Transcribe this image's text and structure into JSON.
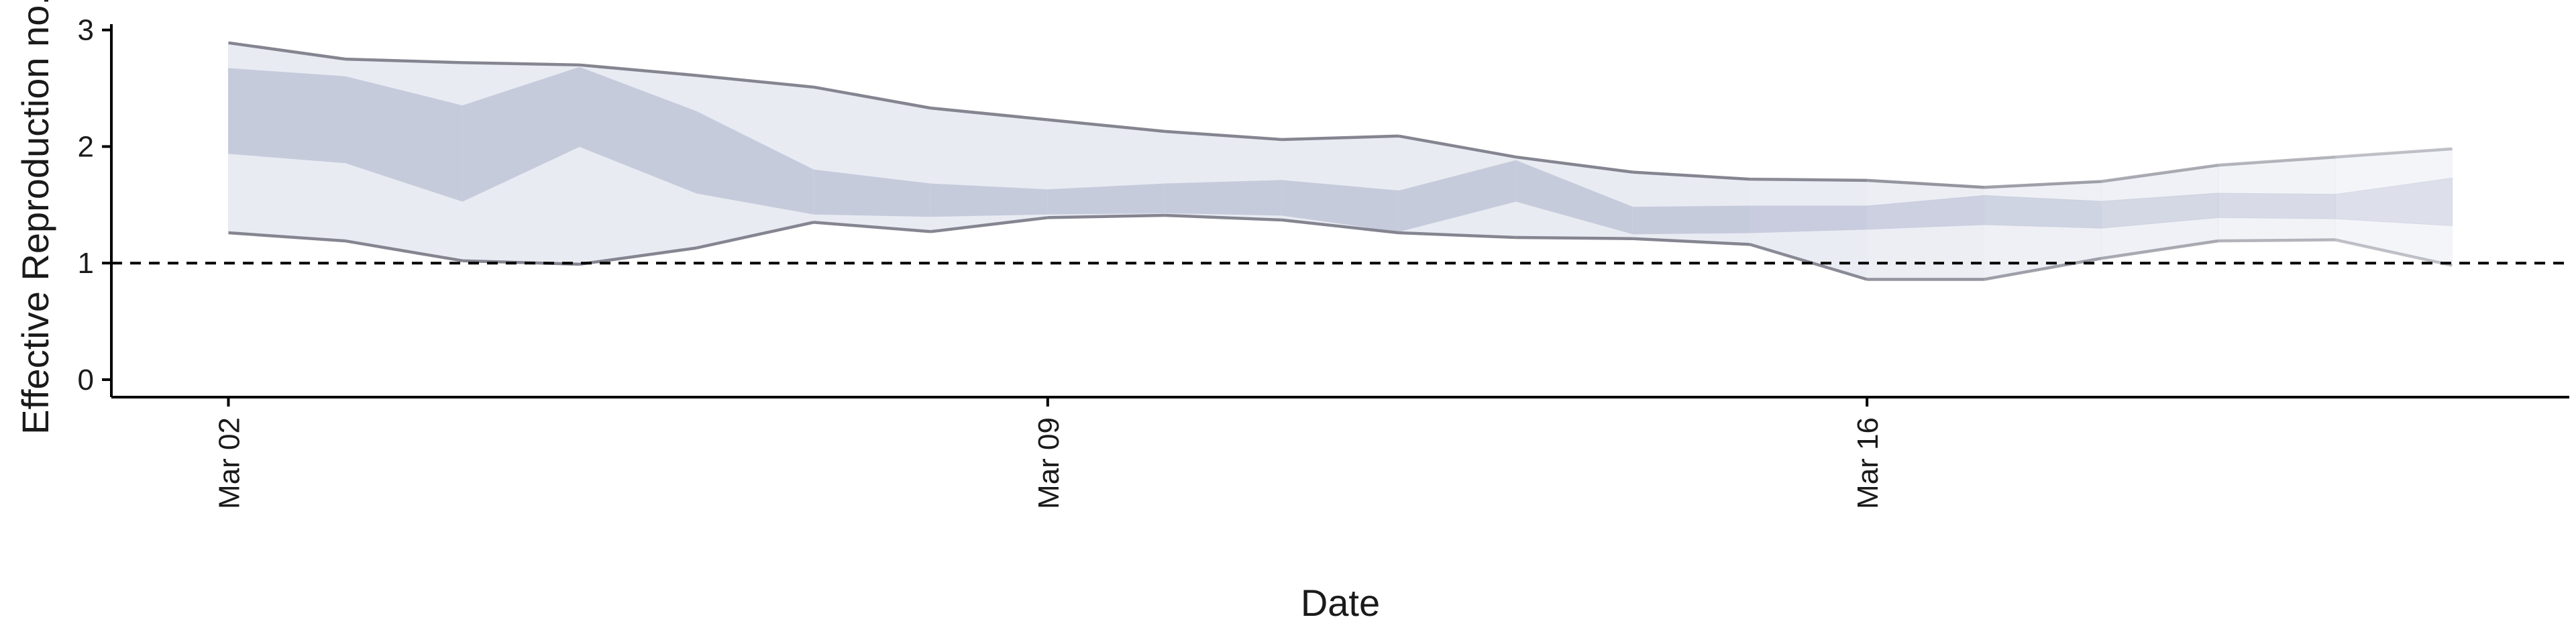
{
  "chart_data": {
    "type": "area",
    "title": "",
    "xlabel": "Date",
    "ylabel": "Effective Reproduction no.",
    "ylim": [
      -0.15,
      3.05
    ],
    "yticks": [
      0,
      1,
      2,
      3
    ],
    "xtick_labels": [
      {
        "date": "2020-03-02",
        "label": "Mar 02"
      },
      {
        "date": "2020-03-09",
        "label": "Mar 09"
      },
      {
        "date": "2020-03-16",
        "label": "Mar 16"
      }
    ],
    "xlim": [
      "2020-03-01",
      "2020-03-22"
    ],
    "reference_line": {
      "y": 1,
      "style": "dashed"
    },
    "grid": false,
    "colors": {
      "outer_band": "#e9ebf2",
      "inner_band": "#c6cbdc",
      "bound_line": "#858591",
      "reference": "#000000"
    },
    "series": [
      {
        "dates": [
          "2020-03-02",
          "2020-03-03",
          "2020-03-04",
          "2020-03-05",
          "2020-03-06",
          "2020-03-07",
          "2020-03-08",
          "2020-03-09",
          "2020-03-10",
          "2020-03-11",
          "2020-03-12",
          "2020-03-13",
          "2020-03-14",
          "2020-03-15",
          "2020-03-16",
          "2020-03-17",
          "2020-03-18",
          "2020-03-19",
          "2020-03-20",
          "2020-03-21"
        ],
        "lower_90": [
          1.26,
          1.19,
          1.02,
          0.99,
          1.13,
          1.35,
          1.27,
          1.39,
          1.41,
          1.37,
          1.26,
          1.22,
          1.21,
          1.16,
          0.86,
          0.86,
          1.04,
          1.19,
          1.2,
          0.98
        ],
        "lower_50": [
          1.94,
          1.86,
          1.53,
          2.0,
          1.6,
          1.42,
          1.4,
          1.42,
          1.43,
          1.41,
          1.27,
          1.53,
          1.25,
          1.26,
          1.29,
          1.33,
          1.3,
          1.39,
          1.38,
          1.32
        ],
        "upper_50": [
          2.67,
          2.6,
          2.35,
          2.68,
          2.3,
          1.8,
          1.68,
          1.63,
          1.68,
          1.71,
          1.62,
          1.88,
          1.48,
          1.49,
          1.49,
          1.58,
          1.53,
          1.6,
          1.59,
          1.73
        ],
        "upper_90": [
          2.89,
          2.75,
          2.72,
          2.7,
          2.61,
          2.51,
          2.33,
          2.23,
          2.13,
          2.06,
          2.09,
          1.91,
          1.78,
          1.72,
          1.71,
          1.65,
          1.7,
          1.84,
          1.91,
          1.98
        ]
      }
    ]
  }
}
